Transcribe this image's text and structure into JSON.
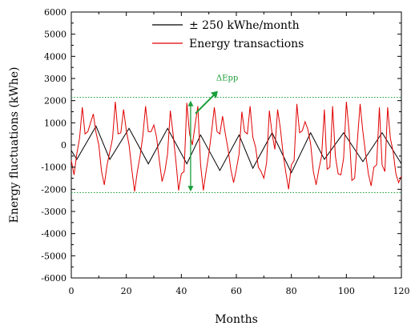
{
  "chart_data": {
    "type": "line",
    "title": "",
    "xlabel": "Months",
    "ylabel": "Energy fluctuations (kWhe)",
    "xlim": [
      0,
      120
    ],
    "ylim": [
      -6000,
      6000
    ],
    "x_ticks": [
      0,
      20,
      40,
      60,
      80,
      100,
      120
    ],
    "y_ticks": [
      -6000,
      -5000,
      -4000,
      -3000,
      -2000,
      -1000,
      0,
      1000,
      2000,
      3000,
      4000,
      5000,
      6000
    ],
    "grid": false,
    "legend_position": "top-center",
    "series": [
      {
        "name": "± 250 kWhe/month",
        "color": "#000000",
        "x": [
          0,
          2,
          9,
          14,
          21,
          28,
          35,
          42,
          47,
          54,
          61,
          66,
          73,
          80,
          87,
          92,
          99,
          106,
          113,
          120
        ],
        "y": [
          -250,
          -650,
          850,
          -650,
          750,
          -850,
          750,
          -850,
          450,
          -1150,
          450,
          -1050,
          550,
          -1250,
          550,
          -650,
          550,
          -750,
          550,
          -850
        ]
      },
      {
        "name": "Energy transactions",
        "color": "#e00000",
        "x": [
          0,
          1,
          2,
          3,
          4,
          5,
          6,
          7,
          8,
          9,
          10,
          11,
          12,
          13,
          14,
          15,
          16,
          17,
          18,
          19,
          20,
          21,
          22,
          23,
          24,
          25,
          26,
          27,
          28,
          29,
          30,
          31,
          32,
          33,
          34,
          35,
          36,
          37,
          38,
          39,
          40,
          41,
          42,
          43,
          44,
          45,
          46,
          47,
          48,
          49,
          50,
          51,
          52,
          53,
          54,
          55,
          56,
          57,
          58,
          59,
          60,
          61,
          62,
          63,
          64,
          65,
          66,
          67,
          68,
          69,
          70,
          71,
          72,
          73,
          74,
          75,
          76,
          77,
          78,
          79,
          80,
          81,
          82,
          83,
          84,
          85,
          86,
          87,
          88,
          89,
          90,
          91,
          92,
          93,
          94,
          95,
          96,
          97,
          98,
          99,
          100,
          101,
          102,
          103,
          104,
          105,
          106,
          107,
          108,
          109,
          110,
          111,
          112,
          113,
          114,
          115,
          116,
          117,
          118,
          119,
          120
        ],
        "y": [
          -700,
          -1350,
          -400,
          300,
          1700,
          500,
          600,
          1000,
          1400,
          550,
          0,
          -1200,
          -1800,
          -900,
          -300,
          300,
          1950,
          500,
          550,
          1600,
          650,
          0,
          -1100,
          -2100,
          -1200,
          -500,
          400,
          1750,
          600,
          600,
          900,
          350,
          -700,
          -1650,
          -1200,
          -400,
          1550,
          500,
          -700,
          -2050,
          -1300,
          -1200,
          1900,
          500,
          0,
          900,
          1750,
          -900,
          -2050,
          -1200,
          -400,
          600,
          1700,
          600,
          500,
          1300,
          500,
          -200,
          -1100,
          -1700,
          -1100,
          -400,
          1500,
          600,
          500,
          1750,
          350,
          -100,
          -1000,
          -1200,
          -1500,
          -800,
          1550,
          500,
          -200,
          1600,
          750,
          -400,
          -1250,
          -2000,
          -900,
          -700,
          1850,
          550,
          650,
          1050,
          700,
          50,
          -1200,
          -1800,
          -1100,
          -500,
          1600,
          -1100,
          -1000,
          1750,
          -500,
          -1300,
          -1350,
          -600,
          1950,
          600,
          -1600,
          -1500,
          200,
          1850,
          600,
          -400,
          -1300,
          -1850,
          -1000,
          -900,
          1700,
          -900,
          -1200,
          1700,
          300,
          -300,
          -1300,
          -1700,
          -1400
        ]
      }
    ],
    "reference_lines": [
      {
        "y": 2150,
        "color": "#1a9e3a",
        "style": "dotted"
      },
      {
        "y": -2150,
        "color": "#1a9e3a",
        "style": "dotted"
      }
    ],
    "annotations": [
      {
        "text": "ΔEpp",
        "color": "#1a9e3a",
        "x": 46,
        "y_from": -2100,
        "y_to": 2000
      }
    ]
  }
}
